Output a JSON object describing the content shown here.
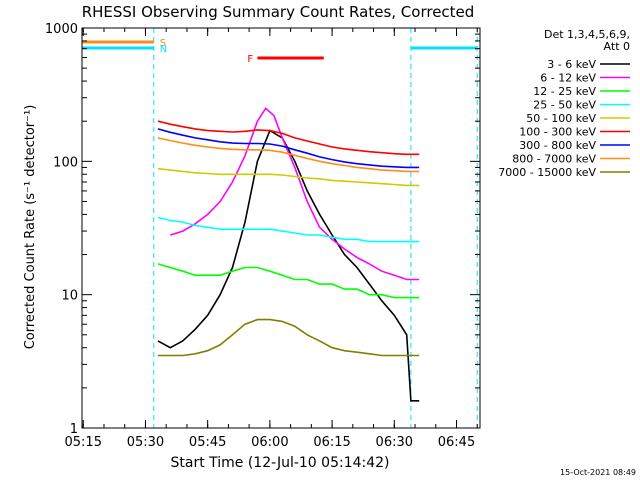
{
  "chart_data": {
    "type": "line",
    "title": "RHESSI Observing Summary Count Rates, Corrected",
    "xlabel": "Start Time (12-Jul-10 05:14:42)",
    "ylabel": "Corrected Count Rate (s⁻¹ detector⁻¹)",
    "x_ticks": [
      "05:15",
      "05:30",
      "05:45",
      "06:00",
      "06:15",
      "06:30",
      "06:45"
    ],
    "y_scale": "log",
    "ylim": [
      1,
      1000
    ],
    "y_ticks": [
      "1",
      "10",
      "100",
      "1000"
    ],
    "xlim": [
      "05:14:42",
      "06:50:40"
    ],
    "legend_position": "top-right",
    "legend_header": [
      "Det 1,3,4,5,6,9,",
      "Att 0"
    ],
    "timestamp": "15-Oct-2021 08:49",
    "flags": [
      {
        "label": "S",
        "color": "#ff8c1a",
        "segments": [
          [
            "05:14:42",
            "05:32:00"
          ]
        ]
      },
      {
        "label": "N",
        "color": "#00e0ff",
        "segments": [
          [
            "05:14:42",
            "05:32:00"
          ],
          [
            "06:34:00",
            "06:50:00"
          ]
        ]
      },
      {
        "label": "F",
        "color": "#ff0000",
        "segments": [
          [
            "05:57:00",
            "06:13:00"
          ]
        ]
      }
    ],
    "night_boundaries": [
      "05:14:42",
      "05:32:00",
      "06:34:00",
      "06:50:00"
    ],
    "series": [
      {
        "name": "3 - 6 keV",
        "color": "#000000",
        "points": [
          [
            "05:33",
            4.5
          ],
          [
            "05:36",
            4.0
          ],
          [
            "05:39",
            4.5
          ],
          [
            "05:42",
            5.5
          ],
          [
            "05:45",
            7.0
          ],
          [
            "05:48",
            10.0
          ],
          [
            "05:51",
            16.0
          ],
          [
            "05:54",
            35.0
          ],
          [
            "05:57",
            100.0
          ],
          [
            "06:00",
            170.0
          ],
          [
            "06:03",
            150.0
          ],
          [
            "06:06",
            100.0
          ],
          [
            "06:09",
            60.0
          ],
          [
            "06:12",
            40.0
          ],
          [
            "06:15",
            28.0
          ],
          [
            "06:18",
            20.0
          ],
          [
            "06:21",
            16.0
          ],
          [
            "06:24",
            12.0
          ],
          [
            "06:27",
            9.0
          ],
          [
            "06:30",
            7.0
          ],
          [
            "06:33",
            5.0
          ],
          [
            "06:34",
            1.6
          ],
          [
            "06:36",
            1.6
          ]
        ]
      },
      {
        "name": "6 - 12 keV",
        "color": "#ff00ff",
        "points": [
          [
            "05:36",
            28.0
          ],
          [
            "05:39",
            30.0
          ],
          [
            "05:42",
            34.0
          ],
          [
            "05:45",
            40.0
          ],
          [
            "05:48",
            50.0
          ],
          [
            "05:51",
            70.0
          ],
          [
            "05:54",
            110.0
          ],
          [
            "05:57",
            200.0
          ],
          [
            "05:59",
            250.0
          ],
          [
            "06:01",
            220.0
          ],
          [
            "06:03",
            150.0
          ],
          [
            "06:06",
            90.0
          ],
          [
            "06:09",
            50.0
          ],
          [
            "06:12",
            32.0
          ],
          [
            "06:15",
            26.0
          ],
          [
            "06:18",
            22.0
          ],
          [
            "06:21",
            19.0
          ],
          [
            "06:24",
            17.0
          ],
          [
            "06:27",
            15.0
          ],
          [
            "06:30",
            14.0
          ],
          [
            "06:33",
            13.0
          ],
          [
            "06:36",
            13.0
          ]
        ]
      },
      {
        "name": "12 - 25 keV",
        "color": "#00ff00",
        "points": [
          [
            "05:33",
            17.0
          ],
          [
            "05:36",
            16.0
          ],
          [
            "05:39",
            15.0
          ],
          [
            "05:42",
            14.0
          ],
          [
            "05:45",
            14.0
          ],
          [
            "05:48",
            14.0
          ],
          [
            "05:51",
            15.0
          ],
          [
            "05:54",
            16.0
          ],
          [
            "05:57",
            16.0
          ],
          [
            "06:00",
            15.0
          ],
          [
            "06:03",
            14.0
          ],
          [
            "06:06",
            13.0
          ],
          [
            "06:09",
            13.0
          ],
          [
            "06:12",
            12.0
          ],
          [
            "06:15",
            12.0
          ],
          [
            "06:18",
            11.0
          ],
          [
            "06:21",
            11.0
          ],
          [
            "06:24",
            10.0
          ],
          [
            "06:27",
            10.0
          ],
          [
            "06:30",
            9.5
          ],
          [
            "06:33",
            9.5
          ],
          [
            "06:36",
            9.5
          ]
        ]
      },
      {
        "name": "25 - 50 keV",
        "color": "#00ffff",
        "points": [
          [
            "05:33",
            38.0
          ],
          [
            "05:36",
            36.0
          ],
          [
            "05:39",
            35.0
          ],
          [
            "05:42",
            33.0
          ],
          [
            "05:45",
            32.0
          ],
          [
            "05:48",
            31.0
          ],
          [
            "05:51",
            31.0
          ],
          [
            "05:54",
            31.0
          ],
          [
            "05:57",
            31.0
          ],
          [
            "06:00",
            31.0
          ],
          [
            "06:03",
            30.0
          ],
          [
            "06:06",
            29.0
          ],
          [
            "06:09",
            28.0
          ],
          [
            "06:12",
            28.0
          ],
          [
            "06:15",
            27.0
          ],
          [
            "06:18",
            26.0
          ],
          [
            "06:21",
            26.0
          ],
          [
            "06:24",
            25.0
          ],
          [
            "06:27",
            25.0
          ],
          [
            "06:30",
            25.0
          ],
          [
            "06:33",
            25.0
          ],
          [
            "06:36",
            25.0
          ]
        ]
      },
      {
        "name": "50 - 100 keV",
        "color": "#cccc00",
        "points": [
          [
            "05:33",
            88.0
          ],
          [
            "05:36",
            86.0
          ],
          [
            "05:39",
            84.0
          ],
          [
            "05:42",
            82.0
          ],
          [
            "05:45",
            81.0
          ],
          [
            "05:48",
            80.0
          ],
          [
            "05:51",
            80.0
          ],
          [
            "05:54",
            80.0
          ],
          [
            "05:57",
            80.0
          ],
          [
            "06:00",
            80.0
          ],
          [
            "06:03",
            79.0
          ],
          [
            "06:06",
            77.0
          ],
          [
            "06:09",
            75.0
          ],
          [
            "06:12",
            74.0
          ],
          [
            "06:15",
            72.0
          ],
          [
            "06:18",
            71.0
          ],
          [
            "06:21",
            70.0
          ],
          [
            "06:24",
            69.0
          ],
          [
            "06:27",
            68.0
          ],
          [
            "06:30",
            67.0
          ],
          [
            "06:33",
            66.0
          ],
          [
            "06:36",
            66.0
          ]
        ]
      },
      {
        "name": "100 - 300 keV",
        "color": "#ff0000",
        "points": [
          [
            "05:33",
            200.0
          ],
          [
            "05:36",
            190.0
          ],
          [
            "05:39",
            182.0
          ],
          [
            "05:42",
            175.0
          ],
          [
            "05:45",
            170.0
          ],
          [
            "05:48",
            168.0
          ],
          [
            "05:51",
            166.0
          ],
          [
            "05:54",
            168.0
          ],
          [
            "05:57",
            172.0
          ],
          [
            "06:00",
            170.0
          ],
          [
            "06:03",
            162.0
          ],
          [
            "06:06",
            150.0
          ],
          [
            "06:09",
            142.0
          ],
          [
            "06:12",
            135.0
          ],
          [
            "06:15",
            128.0
          ],
          [
            "06:18",
            124.0
          ],
          [
            "06:21",
            121.0
          ],
          [
            "06:24",
            118.0
          ],
          [
            "06:27",
            116.0
          ],
          [
            "06:30",
            114.0
          ],
          [
            "06:33",
            113.0
          ],
          [
            "06:36",
            113.0
          ]
        ]
      },
      {
        "name": "300 - 800 keV",
        "color": "#0000ff",
        "points": [
          [
            "05:33",
            175.0
          ],
          [
            "05:36",
            165.0
          ],
          [
            "05:39",
            157.0
          ],
          [
            "05:42",
            150.0
          ],
          [
            "05:45",
            145.0
          ],
          [
            "05:48",
            140.0
          ],
          [
            "05:51",
            137.0
          ],
          [
            "05:54",
            136.0
          ],
          [
            "05:57",
            136.0
          ],
          [
            "06:00",
            135.0
          ],
          [
            "06:03",
            130.0
          ],
          [
            "06:06",
            122.0
          ],
          [
            "06:09",
            115.0
          ],
          [
            "06:12",
            108.0
          ],
          [
            "06:15",
            103.0
          ],
          [
            "06:18",
            99.0
          ],
          [
            "06:21",
            96.0
          ],
          [
            "06:24",
            94.0
          ],
          [
            "06:27",
            92.0
          ],
          [
            "06:30",
            91.0
          ],
          [
            "06:33",
            90.0
          ],
          [
            "06:36",
            90.0
          ]
        ]
      },
      {
        "name": "800 - 7000 keV",
        "color": "#ff8c1a",
        "points": [
          [
            "05:33",
            150.0
          ],
          [
            "05:36",
            143.0
          ],
          [
            "05:39",
            137.0
          ],
          [
            "05:42",
            132.0
          ],
          [
            "05:45",
            128.0
          ],
          [
            "05:48",
            125.0
          ],
          [
            "05:51",
            123.0
          ],
          [
            "05:54",
            122.0
          ],
          [
            "05:57",
            122.0
          ],
          [
            "06:00",
            121.0
          ],
          [
            "06:03",
            117.0
          ],
          [
            "06:06",
            111.0
          ],
          [
            "06:09",
            105.0
          ],
          [
            "06:12",
            100.0
          ],
          [
            "06:15",
            96.0
          ],
          [
            "06:18",
            93.0
          ],
          [
            "06:21",
            90.0
          ],
          [
            "06:24",
            88.0
          ],
          [
            "06:27",
            86.0
          ],
          [
            "06:30",
            85.0
          ],
          [
            "06:33",
            84.0
          ],
          [
            "06:36",
            84.0
          ]
        ]
      },
      {
        "name": "7000 - 15000 keV",
        "color": "#808000",
        "points": [
          [
            "05:33",
            3.5
          ],
          [
            "05:36",
            3.5
          ],
          [
            "05:39",
            3.5
          ],
          [
            "05:42",
            3.6
          ],
          [
            "05:45",
            3.8
          ],
          [
            "05:48",
            4.2
          ],
          [
            "05:51",
            5.0
          ],
          [
            "05:54",
            6.0
          ],
          [
            "05:57",
            6.5
          ],
          [
            "06:00",
            6.5
          ],
          [
            "06:03",
            6.3
          ],
          [
            "06:06",
            5.8
          ],
          [
            "06:09",
            5.0
          ],
          [
            "06:12",
            4.5
          ],
          [
            "06:15",
            4.0
          ],
          [
            "06:18",
            3.8
          ],
          [
            "06:21",
            3.7
          ],
          [
            "06:24",
            3.6
          ],
          [
            "06:27",
            3.5
          ],
          [
            "06:30",
            3.5
          ],
          [
            "06:33",
            3.5
          ],
          [
            "06:36",
            3.5
          ]
        ]
      }
    ]
  }
}
